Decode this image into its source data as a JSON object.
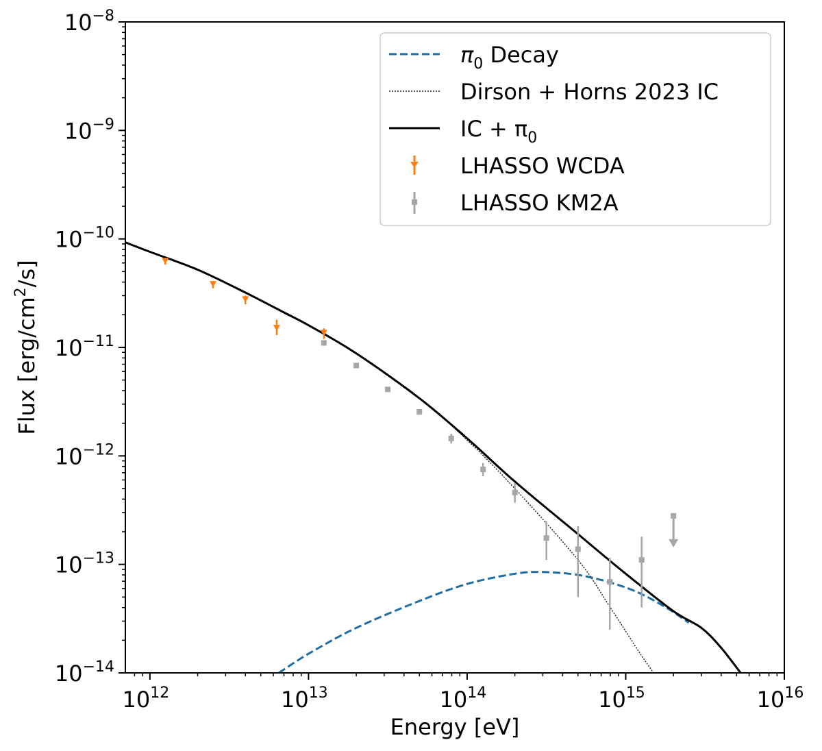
{
  "chart_data": {
    "type": "line",
    "xlabel": "Energy [eV]",
    "ylabel_parts": {
      "pre": "Flux [erg/cm",
      "sup": "2",
      "post": "/s]"
    },
    "xscale": "log",
    "yscale": "log",
    "xlim": [
      700000000000.0,
      1e+16
    ],
    "ylim": [
      1e-14,
      1e-08
    ],
    "x_ticks": [
      {
        "base": "10",
        "exp": "12"
      },
      {
        "base": "10",
        "exp": "13"
      },
      {
        "base": "10",
        "exp": "14"
      },
      {
        "base": "10",
        "exp": "15"
      },
      {
        "base": "10",
        "exp": "16"
      }
    ],
    "y_ticks": [
      {
        "base": "10",
        "exp": "−8"
      },
      {
        "base": "10",
        "exp": "−9"
      },
      {
        "base": "10",
        "exp": "−10"
      },
      {
        "base": "10",
        "exp": "−11"
      },
      {
        "base": "10",
        "exp": "−12"
      },
      {
        "base": "10",
        "exp": "−13"
      },
      {
        "base": "10",
        "exp": "−14"
      }
    ],
    "legend_position": "top-right",
    "series": [
      {
        "name": "π0 Decay",
        "label_symbol": "π",
        "label_sub": "0",
        "label_rest": " Decay",
        "style": "dashed",
        "color": "#1f6ea3",
        "x": [
          6500000000000.0,
          10000000000000.0,
          20000000000000.0,
          50000000000000.0,
          100000000000000.0,
          200000000000000.0,
          300000000000000.0,
          500000000000000.0,
          800000000000000.0,
          1200000000000000.0,
          1800000000000000.0,
          2500000000000000.0
        ],
        "y": [
          1e-14,
          1.5e-14,
          2.6e-14,
          4.6e-14,
          6.6e-14,
          8.2e-14,
          8.5e-14,
          8e-14,
          6.8e-14,
          5.5e-14,
          4e-14,
          2.9e-14
        ]
      },
      {
        "name": "Dirson + Horns 2023 IC",
        "label_symbol": "",
        "label_sub": "",
        "label_rest": "Dirson + Horns 2023 IC",
        "style": "dotted",
        "color": "#222222",
        "x": [
          700000000000.0,
          1000000000000.0,
          2000000000000.0,
          4000000000000.0,
          7000000000000.0,
          10000000000000.0,
          20000000000000.0,
          50000000000000.0,
          100000000000000.0,
          200000000000000.0,
          500000000000000.0,
          800000000000000.0,
          1200000000000000.0,
          1500000000000000.0
        ],
        "y": [
          9.3e-11,
          7.6e-11,
          5.2e-11,
          3.2e-11,
          2.1e-11,
          1.6e-11,
          8.8e-12,
          3.4e-12,
          1.4e-12,
          5e-13,
          1.1e-13,
          4e-14,
          1.6e-14,
          1e-14
        ]
      },
      {
        "name": "IC + π0",
        "label_symbol": "IC + π",
        "label_sub": "0",
        "label_rest": "",
        "style": "solid",
        "color": "#000000",
        "x": [
          700000000000.0,
          1000000000000.0,
          2000000000000.0,
          4000000000000.0,
          7000000000000.0,
          10000000000000.0,
          20000000000000.0,
          50000000000000.0,
          100000000000000.0,
          200000000000000.0,
          500000000000000.0,
          1000000000000000.0,
          2000000000000000.0,
          3000000000000000.0,
          4000000000000000.0,
          5300000000000000.0
        ],
        "y": [
          9.3e-11,
          7.6e-11,
          5.2e-11,
          3.2e-11,
          2.1e-11,
          1.6e-11,
          8.8e-12,
          3.4e-12,
          1.45e-12,
          5.8e-13,
          1.9e-13,
          8.2e-14,
          3.7e-14,
          2.6e-14,
          1.7e-14,
          1e-14
        ]
      }
    ],
    "points": [
      {
        "name": "LHASSO WCDA",
        "color": "#ff7f0e",
        "marker": "upper-limit-arrow",
        "data": [
          {
            "x": 1250000000000.0,
            "y": 6.2e-11,
            "ylo": 5.8e-11,
            "yhi": 6.6e-11
          },
          {
            "x": 2500000000000.0,
            "y": 3.8e-11,
            "ylo": 3.5e-11,
            "yhi": 4.1e-11
          },
          {
            "x": 4000000000000.0,
            "y": 2.75e-11,
            "ylo": 2.5e-11,
            "yhi": 3e-11
          },
          {
            "x": 6300000000000.0,
            "y": 1.5e-11,
            "ylo": 1.3e-11,
            "yhi": 1.8e-11
          },
          {
            "x": 12500000000000.0,
            "y": 1.35e-11,
            "ylo": 1.2e-11,
            "yhi": 1.5e-11
          }
        ]
      },
      {
        "name": "LHASSO KM2A",
        "color": "#a6a6a6",
        "marker": "square",
        "data": [
          {
            "x": 12500000000000.0,
            "y": 1.1e-11,
            "ylo": 1.05e-11,
            "yhi": 1.15e-11
          },
          {
            "x": 20000000000000.0,
            "y": 6.8e-12,
            "ylo": 6.5e-12,
            "yhi": 7.1e-12
          },
          {
            "x": 31600000000000.0,
            "y": 4.1e-12,
            "ylo": 3.9e-12,
            "yhi": 4.3e-12
          },
          {
            "x": 50000000000000.0,
            "y": 2.55e-12,
            "ylo": 2.4e-12,
            "yhi": 2.7e-12
          },
          {
            "x": 79400000000000.0,
            "y": 1.45e-12,
            "ylo": 1.3e-12,
            "yhi": 1.6e-12
          },
          {
            "x": 126000000000000.0,
            "y": 7.5e-13,
            "ylo": 6.5e-13,
            "yhi": 8.6e-13
          },
          {
            "x": 200000000000000.0,
            "y": 4.6e-13,
            "ylo": 3.7e-13,
            "yhi": 5.6e-13
          },
          {
            "x": 316000000000000.0,
            "y": 1.75e-13,
            "ylo": 1.1e-13,
            "yhi": 2.5e-13
          },
          {
            "x": 500000000000000.0,
            "y": 1.38e-13,
            "ylo": 5e-14,
            "yhi": 2.25e-13
          },
          {
            "x": 794000000000000.0,
            "y": 6.9e-14,
            "ylo": 2.5e-14,
            "yhi": 1.15e-13
          },
          {
            "x": 1260000000000000.0,
            "y": 1.1e-13,
            "ylo": 4e-14,
            "yhi": 1.8e-13
          },
          {
            "x": 2000000000000000.0,
            "y": 2.8e-13,
            "upper_limit": true
          }
        ]
      }
    ]
  }
}
